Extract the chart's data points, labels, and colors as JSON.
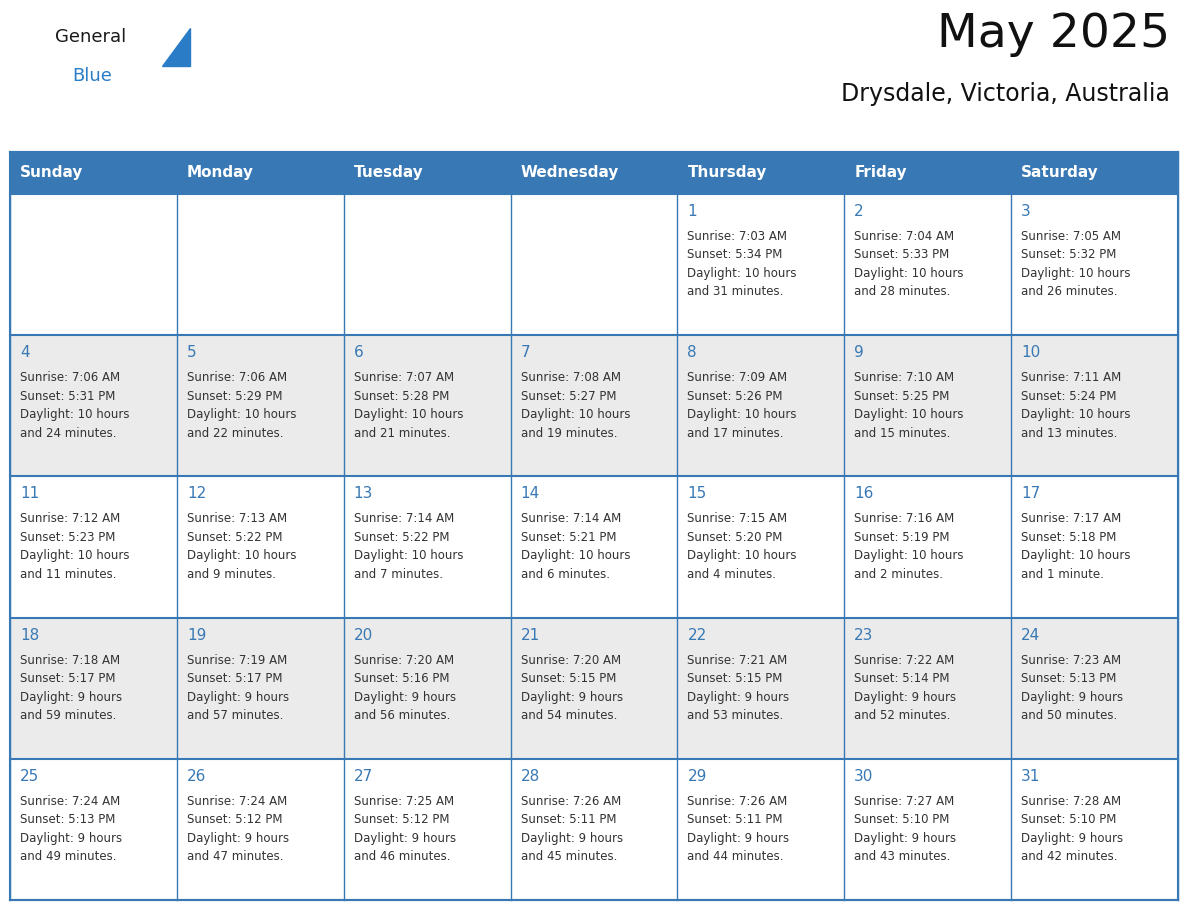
{
  "title": "May 2025",
  "subtitle": "Drysdale, Victoria, Australia",
  "days_of_week": [
    "Sunday",
    "Monday",
    "Tuesday",
    "Wednesday",
    "Thursday",
    "Friday",
    "Saturday"
  ],
  "header_bg": "#3878b4",
  "header_text": "#ffffff",
  "cell_bg_white": "#ffffff",
  "cell_bg_gray": "#ebebeb",
  "day_number_color": "#3878b4",
  "text_color": "#333333",
  "grid_color": "#3878b4",
  "logo_general_color": "#1a1a1a",
  "logo_blue_color": "#2a7cc7",
  "calendar_data": [
    [
      {
        "day": null,
        "sunrise": null,
        "sunset": null,
        "daylight": null
      },
      {
        "day": null,
        "sunrise": null,
        "sunset": null,
        "daylight": null
      },
      {
        "day": null,
        "sunrise": null,
        "sunset": null,
        "daylight": null
      },
      {
        "day": null,
        "sunrise": null,
        "sunset": null,
        "daylight": null
      },
      {
        "day": 1,
        "sunrise": "7:03 AM",
        "sunset": "5:34 PM",
        "daylight": "10 hours and 31 minutes."
      },
      {
        "day": 2,
        "sunrise": "7:04 AM",
        "sunset": "5:33 PM",
        "daylight": "10 hours and 28 minutes."
      },
      {
        "day": 3,
        "sunrise": "7:05 AM",
        "sunset": "5:32 PM",
        "daylight": "10 hours and 26 minutes."
      }
    ],
    [
      {
        "day": 4,
        "sunrise": "7:06 AM",
        "sunset": "5:31 PM",
        "daylight": "10 hours and 24 minutes."
      },
      {
        "day": 5,
        "sunrise": "7:06 AM",
        "sunset": "5:29 PM",
        "daylight": "10 hours and 22 minutes."
      },
      {
        "day": 6,
        "sunrise": "7:07 AM",
        "sunset": "5:28 PM",
        "daylight": "10 hours and 21 minutes."
      },
      {
        "day": 7,
        "sunrise": "7:08 AM",
        "sunset": "5:27 PM",
        "daylight": "10 hours and 19 minutes."
      },
      {
        "day": 8,
        "sunrise": "7:09 AM",
        "sunset": "5:26 PM",
        "daylight": "10 hours and 17 minutes."
      },
      {
        "day": 9,
        "sunrise": "7:10 AM",
        "sunset": "5:25 PM",
        "daylight": "10 hours and 15 minutes."
      },
      {
        "day": 10,
        "sunrise": "7:11 AM",
        "sunset": "5:24 PM",
        "daylight": "10 hours and 13 minutes."
      }
    ],
    [
      {
        "day": 11,
        "sunrise": "7:12 AM",
        "sunset": "5:23 PM",
        "daylight": "10 hours and 11 minutes."
      },
      {
        "day": 12,
        "sunrise": "7:13 AM",
        "sunset": "5:22 PM",
        "daylight": "10 hours and 9 minutes."
      },
      {
        "day": 13,
        "sunrise": "7:14 AM",
        "sunset": "5:22 PM",
        "daylight": "10 hours and 7 minutes."
      },
      {
        "day": 14,
        "sunrise": "7:14 AM",
        "sunset": "5:21 PM",
        "daylight": "10 hours and 6 minutes."
      },
      {
        "day": 15,
        "sunrise": "7:15 AM",
        "sunset": "5:20 PM",
        "daylight": "10 hours and 4 minutes."
      },
      {
        "day": 16,
        "sunrise": "7:16 AM",
        "sunset": "5:19 PM",
        "daylight": "10 hours and 2 minutes."
      },
      {
        "day": 17,
        "sunrise": "7:17 AM",
        "sunset": "5:18 PM",
        "daylight": "10 hours and 1 minute."
      }
    ],
    [
      {
        "day": 18,
        "sunrise": "7:18 AM",
        "sunset": "5:17 PM",
        "daylight": "9 hours and 59 minutes."
      },
      {
        "day": 19,
        "sunrise": "7:19 AM",
        "sunset": "5:17 PM",
        "daylight": "9 hours and 57 minutes."
      },
      {
        "day": 20,
        "sunrise": "7:20 AM",
        "sunset": "5:16 PM",
        "daylight": "9 hours and 56 minutes."
      },
      {
        "day": 21,
        "sunrise": "7:20 AM",
        "sunset": "5:15 PM",
        "daylight": "9 hours and 54 minutes."
      },
      {
        "day": 22,
        "sunrise": "7:21 AM",
        "sunset": "5:15 PM",
        "daylight": "9 hours and 53 minutes."
      },
      {
        "day": 23,
        "sunrise": "7:22 AM",
        "sunset": "5:14 PM",
        "daylight": "9 hours and 52 minutes."
      },
      {
        "day": 24,
        "sunrise": "7:23 AM",
        "sunset": "5:13 PM",
        "daylight": "9 hours and 50 minutes."
      }
    ],
    [
      {
        "day": 25,
        "sunrise": "7:24 AM",
        "sunset": "5:13 PM",
        "daylight": "9 hours and 49 minutes."
      },
      {
        "day": 26,
        "sunrise": "7:24 AM",
        "sunset": "5:12 PM",
        "daylight": "9 hours and 47 minutes."
      },
      {
        "day": 27,
        "sunrise": "7:25 AM",
        "sunset": "5:12 PM",
        "daylight": "9 hours and 46 minutes."
      },
      {
        "day": 28,
        "sunrise": "7:26 AM",
        "sunset": "5:11 PM",
        "daylight": "9 hours and 45 minutes."
      },
      {
        "day": 29,
        "sunrise": "7:26 AM",
        "sunset": "5:11 PM",
        "daylight": "9 hours and 44 minutes."
      },
      {
        "day": 30,
        "sunrise": "7:27 AM",
        "sunset": "5:10 PM",
        "daylight": "9 hours and 43 minutes."
      },
      {
        "day": 31,
        "sunrise": "7:28 AM",
        "sunset": "5:10 PM",
        "daylight": "9 hours and 42 minutes."
      }
    ]
  ]
}
